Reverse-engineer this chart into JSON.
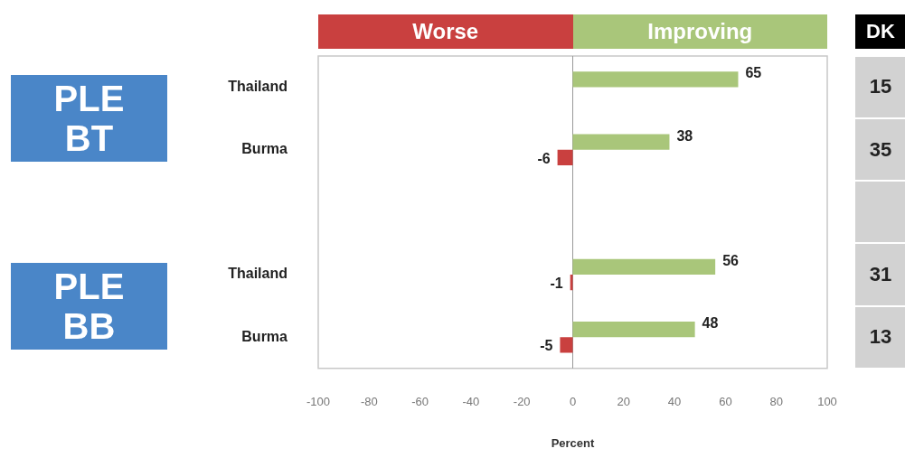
{
  "chart_data": {
    "type": "bar",
    "orientation": "horizontal",
    "xlabel": "Percent",
    "categories": [
      "Thailand",
      "Burma",
      null,
      "Thailand",
      "Burma"
    ],
    "series": [
      {
        "name": "Improving",
        "color": "#a9c67a",
        "values": [
          65,
          38,
          null,
          56,
          48
        ]
      },
      {
        "name": "Worse",
        "color": "#c9403f",
        "values": [
          null,
          -6,
          null,
          -1,
          -5
        ]
      }
    ],
    "xlim": [
      -100,
      100
    ],
    "xticks": [
      -100,
      -80,
      -60,
      -40,
      -20,
      0,
      20,
      40,
      60,
      80,
      100
    ],
    "grid": false,
    "ref_lines": [
      {
        "axis": "x",
        "value": 0,
        "color": "#999999"
      }
    ],
    "legend": "top",
    "data_labels": true,
    "annotations": [
      "PLE\nBT",
      "PLE\nBB",
      "DK",
      "15",
      "35",
      "31",
      "13"
    ]
  }
}
